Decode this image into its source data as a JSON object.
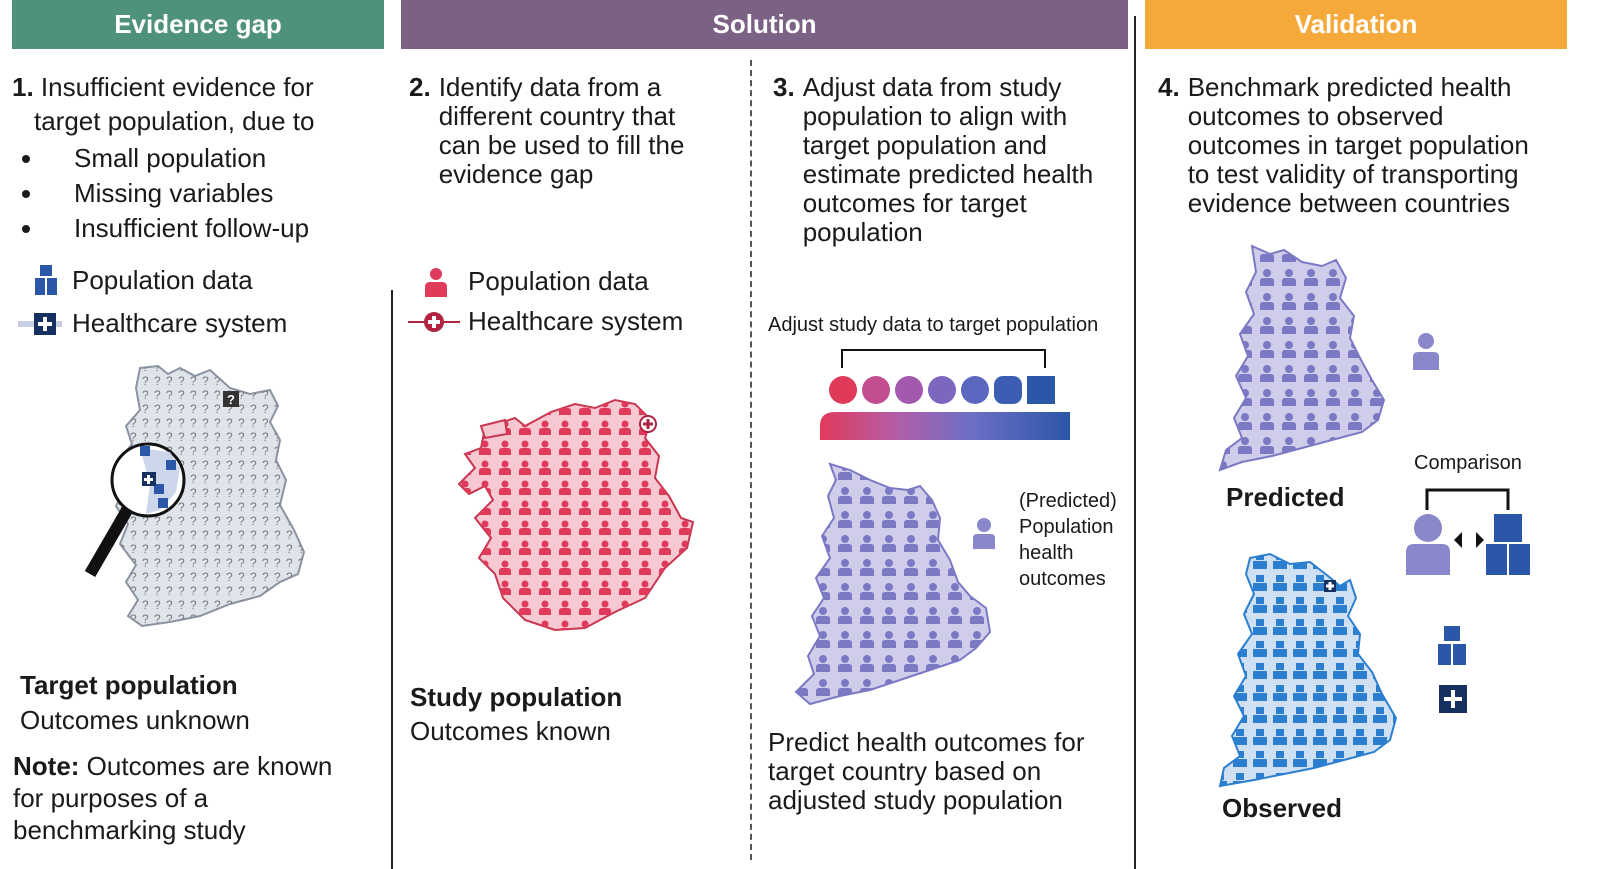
{
  "headers": {
    "evidence_gap": "Evidence gap",
    "solution": "Solution",
    "validation": "Validation"
  },
  "colors": {
    "evidence_gap": "#4e927a",
    "solution": "#7b6184",
    "validation": "#f5a93b",
    "study_red": "#e03a5a",
    "target_blue": "#2c56a8",
    "predicted_purple": "#8a87cb",
    "observed_blue": "#2c7fd0"
  },
  "step1": {
    "num": "1.",
    "text_line1": "Insufficient evidence for",
    "text_line2": "target population, due to",
    "bullets": [
      "Small population",
      "Missing variables",
      "Insufficient follow-up"
    ],
    "legend_population": "Population data",
    "legend_healthcare": "Healthcare system",
    "map_question_mark": "?",
    "caption_bold": "Target population",
    "caption": "Outcomes unknown",
    "note_bold": "Note:",
    "note_line1": "Outcomes are known",
    "note_line2": "for purposes of a",
    "note_line3": "benchmarking study"
  },
  "step2": {
    "num": "2.",
    "lines": [
      "Identify data from a",
      "different country that",
      "can be used to fill the",
      "evidence gap"
    ],
    "legend_population": "Population data",
    "legend_healthcare": "Healthcare system",
    "caption_bold": "Study population",
    "caption": "Outcomes known"
  },
  "step3": {
    "num": "3.",
    "lines": [
      "Adjust data from study",
      "population to align with",
      "target population and",
      "estimate predicted health",
      "outcomes for target",
      "population"
    ],
    "adjust_label": "Adjust study data to target population",
    "side_lines": [
      "(Predicted)",
      "Population",
      "health",
      "outcomes"
    ],
    "bottom_lines": [
      "Predict health outcomes for",
      "target country based on",
      "adjusted study population"
    ]
  },
  "step4": {
    "num": "4.",
    "lines": [
      "Benchmark predicted health",
      "outcomes to observed",
      "outcomes in target population",
      "to test validity of transporting",
      "evidence between countries"
    ],
    "predicted_label": "Predicted",
    "comparison_label": "Comparison",
    "observed_label": "Observed"
  }
}
